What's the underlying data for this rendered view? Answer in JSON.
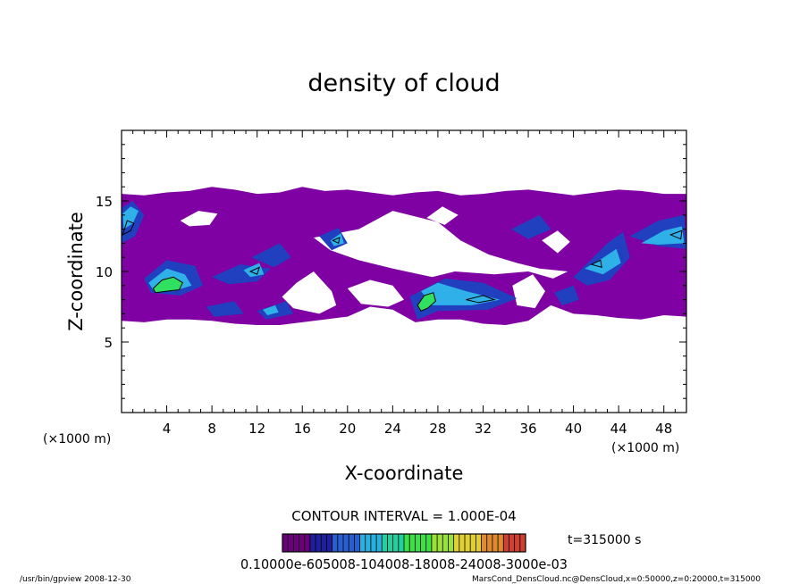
{
  "chart_data": {
    "type": "heatmap",
    "title": "density of cloud",
    "xlabel": "X-coordinate",
    "ylabel": "Z-coordinate",
    "x_unit": "(×1000 m)",
    "y_unit": "(×1000 m)",
    "xlim": [
      0,
      50
    ],
    "ylim": [
      0,
      20
    ],
    "x_ticks": [
      4,
      8,
      12,
      16,
      20,
      24,
      28,
      32,
      36,
      40,
      44,
      48
    ],
    "y_ticks": [
      5,
      10,
      15
    ],
    "contour_interval_text": "CONTOUR INTERVAL = 1.000E-04",
    "time_text": "t=315000 s",
    "colorbar_text": "0.10000e-605008-104008-18008-24008-3000e-03",
    "colorbar_colors": [
      "#6a007a",
      "#1f1f9e",
      "#2a5fd0",
      "#2ab0e0",
      "#23d0a0",
      "#3ee04a",
      "#9ce03a",
      "#e0d030",
      "#e08a30",
      "#d04030"
    ],
    "footer_left": "/usr/bin/gpview  2008-12-30",
    "footer_right": "MarsCond_DensCloud.nc@DensCloud,x=0:50000,z=0:20000,t=315000",
    "cloud_colors": {
      "outer": "#7f00a3",
      "mid": "#2040c0",
      "bright": "#30b0e8",
      "core": "#30e060",
      "contour": "#000000"
    },
    "cloud_main": [
      [
        0,
        15.5
      ],
      [
        2,
        15.4
      ],
      [
        4,
        15.6
      ],
      [
        6,
        15.7
      ],
      [
        8,
        16.0
      ],
      [
        10,
        15.8
      ],
      [
        12,
        15.5
      ],
      [
        14,
        15.6
      ],
      [
        16,
        16.0
      ],
      [
        18,
        15.7
      ],
      [
        20,
        15.8
      ],
      [
        22,
        15.6
      ],
      [
        24,
        15.4
      ],
      [
        26,
        15.6
      ],
      [
        28,
        15.7
      ],
      [
        30,
        15.4
      ],
      [
        32,
        15.5
      ],
      [
        34,
        15.7
      ],
      [
        36,
        15.8
      ],
      [
        38,
        15.6
      ],
      [
        40,
        15.4
      ],
      [
        42,
        15.6
      ],
      [
        44,
        15.8
      ],
      [
        46,
        15.7
      ],
      [
        48,
        15.5
      ],
      [
        50,
        15.5
      ],
      [
        50,
        6.8
      ],
      [
        48,
        6.9
      ],
      [
        46,
        6.6
      ],
      [
        44,
        6.7
      ],
      [
        42,
        6.9
      ],
      [
        40,
        7.0
      ],
      [
        38,
        7.6
      ],
      [
        36,
        6.5
      ],
      [
        34,
        6.2
      ],
      [
        32,
        6.3
      ],
      [
        30,
        6.6
      ],
      [
        28,
        6.6
      ],
      [
        26,
        6.4
      ],
      [
        24,
        7.3
      ],
      [
        22,
        7.5
      ],
      [
        20,
        6.8
      ],
      [
        18,
        6.6
      ],
      [
        16,
        6.4
      ],
      [
        14,
        6.2
      ],
      [
        12,
        6.2
      ],
      [
        10,
        6.3
      ],
      [
        8,
        6.5
      ],
      [
        6,
        6.6
      ],
      [
        4,
        6.6
      ],
      [
        2,
        6.4
      ],
      [
        0,
        6.5
      ]
    ],
    "gaps": [
      [
        [
          5.2,
          13.6
        ],
        [
          6.8,
          14.3
        ],
        [
          8.5,
          14.1
        ],
        [
          7.8,
          13.3
        ],
        [
          6.0,
          13.2
        ]
      ],
      [
        [
          27.0,
          13.8
        ],
        [
          28.4,
          14.6
        ],
        [
          29.8,
          14.0
        ],
        [
          28.6,
          13.3
        ]
      ],
      [
        [
          26.0,
          13.0
        ],
        [
          27.3,
          12.6
        ],
        [
          27.6,
          11.6
        ],
        [
          26.2,
          11.7
        ]
      ],
      [
        [
          17.0,
          12.4
        ],
        [
          21.0,
          13.0
        ],
        [
          24.0,
          14.3
        ],
        [
          28.0,
          13.5
        ],
        [
          30.0,
          12.2
        ],
        [
          32.5,
          11.2
        ],
        [
          35.0,
          10.6
        ],
        [
          37.0,
          10.2
        ],
        [
          39.5,
          10.0
        ],
        [
          38.2,
          9.5
        ],
        [
          36.0,
          10.0
        ],
        [
          33.0,
          9.8
        ],
        [
          29.5,
          10.0
        ],
        [
          27.5,
          9.6
        ],
        [
          24.0,
          10.2
        ],
        [
          21.0,
          10.8
        ],
        [
          18.5,
          11.5
        ]
      ],
      [
        [
          15.5,
          9.2
        ],
        [
          17.0,
          10.0
        ],
        [
          18.6,
          8.6
        ],
        [
          19.0,
          7.6
        ],
        [
          17.5,
          7.0
        ],
        [
          15.2,
          7.4
        ],
        [
          14.2,
          8.2
        ]
      ],
      [
        [
          20.0,
          8.8
        ],
        [
          22.0,
          9.4
        ],
        [
          24.0,
          9.0
        ],
        [
          25.0,
          8.0
        ],
        [
          23.6,
          7.5
        ],
        [
          21.2,
          7.7
        ]
      ],
      [
        [
          34.6,
          9.0
        ],
        [
          36.4,
          9.8
        ],
        [
          37.5,
          8.6
        ],
        [
          36.6,
          7.4
        ],
        [
          35.0,
          7.6
        ]
      ],
      [
        [
          37.2,
          12.2
        ],
        [
          38.6,
          12.9
        ],
        [
          39.7,
          12.1
        ],
        [
          38.6,
          11.3
        ]
      ]
    ],
    "mid_blobs": [
      [
        [
          0.0,
          12.0
        ],
        [
          1.2,
          12.5
        ],
        [
          2.0,
          14.0
        ],
        [
          1.0,
          15.0
        ],
        [
          0.0,
          14.5
        ]
      ],
      [
        [
          2.0,
          9.5
        ],
        [
          4.0,
          10.8
        ],
        [
          6.5,
          10.4
        ],
        [
          7.2,
          9.0
        ],
        [
          5.2,
          8.3
        ],
        [
          2.6,
          8.5
        ]
      ],
      [
        [
          8.0,
          9.6
        ],
        [
          10.5,
          10.5
        ],
        [
          13.2,
          10.2
        ],
        [
          12.0,
          9.3
        ],
        [
          9.5,
          9.1
        ]
      ],
      [
        [
          11.5,
          11.0
        ],
        [
          14.0,
          12.0
        ],
        [
          15.0,
          11.0
        ],
        [
          13.5,
          10.3
        ]
      ],
      [
        [
          17.5,
          12.5
        ],
        [
          19.2,
          13.1
        ],
        [
          20.0,
          12.0
        ],
        [
          18.6,
          11.5
        ]
      ],
      [
        [
          7.5,
          7.5
        ],
        [
          10.0,
          7.9
        ],
        [
          10.8,
          7.0
        ],
        [
          8.2,
          6.8
        ]
      ],
      [
        [
          12.0,
          7.2
        ],
        [
          14.6,
          7.9
        ],
        [
          15.2,
          7.0
        ],
        [
          12.8,
          6.6
        ]
      ],
      [
        [
          25.5,
          8.2
        ],
        [
          28.6,
          9.5
        ],
        [
          32.0,
          9.2
        ],
        [
          35.0,
          8.1
        ],
        [
          32.5,
          7.3
        ],
        [
          28.0,
          7.2
        ],
        [
          26.2,
          6.6
        ]
      ],
      [
        [
          34.5,
          13.0
        ],
        [
          37.0,
          14.0
        ],
        [
          38.0,
          13.0
        ],
        [
          36.0,
          12.3
        ]
      ],
      [
        [
          40.0,
          9.6
        ],
        [
          41.5,
          10.8
        ],
        [
          43.0,
          12.0
        ],
        [
          44.4,
          12.8
        ],
        [
          45.0,
          11.0
        ],
        [
          43.2,
          9.4
        ],
        [
          41.2,
          9.0
        ]
      ],
      [
        [
          45.0,
          12.5
        ],
        [
          47.5,
          13.6
        ],
        [
          49.8,
          14.0
        ],
        [
          50.0,
          11.6
        ],
        [
          47.5,
          11.8
        ]
      ],
      [
        [
          38.3,
          8.5
        ],
        [
          40.0,
          9.0
        ],
        [
          40.5,
          8.0
        ],
        [
          39.0,
          7.6
        ]
      ]
    ],
    "bright_blobs": [
      [
        [
          0.2,
          13.0
        ],
        [
          1.0,
          13.4
        ],
        [
          1.5,
          14.3
        ],
        [
          0.8,
          14.6
        ],
        [
          0.1,
          14.1
        ]
      ],
      [
        [
          2.4,
          9.2
        ],
        [
          4.0,
          10.2
        ],
        [
          5.6,
          9.8
        ],
        [
          6.2,
          9.0
        ],
        [
          4.6,
          8.6
        ],
        [
          2.8,
          8.7
        ]
      ],
      [
        [
          10.8,
          10.1
        ],
        [
          12.2,
          10.6
        ],
        [
          12.6,
          9.8
        ],
        [
          11.4,
          9.6
        ]
      ],
      [
        [
          18.5,
          12.2
        ],
        [
          19.4,
          12.7
        ],
        [
          19.7,
          12.0
        ],
        [
          18.8,
          11.8
        ]
      ],
      [
        [
          26.5,
          8.6
        ],
        [
          28.0,
          9.2
        ],
        [
          30.5,
          8.6
        ],
        [
          33.5,
          8.0
        ],
        [
          31.0,
          7.6
        ],
        [
          27.5,
          7.6
        ]
      ],
      [
        [
          41.0,
          10.2
        ],
        [
          42.5,
          10.9
        ],
        [
          43.8,
          11.6
        ],
        [
          44.2,
          10.6
        ],
        [
          42.6,
          9.8
        ]
      ],
      [
        [
          46.0,
          12.0
        ],
        [
          48.0,
          12.9
        ],
        [
          49.6,
          13.2
        ],
        [
          49.8,
          12.0
        ],
        [
          47.5,
          11.9
        ]
      ],
      [
        [
          12.5,
          7.3
        ],
        [
          13.6,
          7.6
        ],
        [
          13.9,
          7.1
        ],
        [
          12.9,
          6.9
        ]
      ]
    ],
    "core_blobs": [
      [
        [
          2.8,
          8.8
        ],
        [
          3.6,
          9.4
        ],
        [
          4.6,
          9.6
        ],
        [
          5.4,
          9.2
        ],
        [
          5.1,
          8.7
        ],
        [
          4.0,
          8.6
        ],
        [
          3.0,
          8.5
        ]
      ],
      [
        [
          26.2,
          7.6
        ],
        [
          26.8,
          8.3
        ],
        [
          27.6,
          8.5
        ],
        [
          27.8,
          7.9
        ],
        [
          27.1,
          7.4
        ],
        [
          26.5,
          7.2
        ]
      ]
    ],
    "contour_rings": [
      [
        [
          0.1,
          12.6
        ],
        [
          0.8,
          12.9
        ],
        [
          1.1,
          13.4
        ],
        [
          0.5,
          13.6
        ]
      ],
      [
        [
          11.4,
          10.0
        ],
        [
          12.2,
          10.3
        ],
        [
          12.0,
          9.8
        ]
      ],
      [
        [
          18.7,
          12.2
        ],
        [
          19.3,
          12.4
        ],
        [
          19.2,
          12.0
        ]
      ],
      [
        [
          41.6,
          10.5
        ],
        [
          42.4,
          10.8
        ],
        [
          42.5,
          10.3
        ]
      ],
      [
        [
          30.5,
          8.0
        ],
        [
          32.0,
          8.3
        ],
        [
          33.0,
          8.0
        ],
        [
          31.6,
          7.8
        ]
      ],
      [
        [
          48.6,
          12.6
        ],
        [
          49.6,
          12.9
        ],
        [
          49.5,
          12.3
        ]
      ]
    ]
  }
}
